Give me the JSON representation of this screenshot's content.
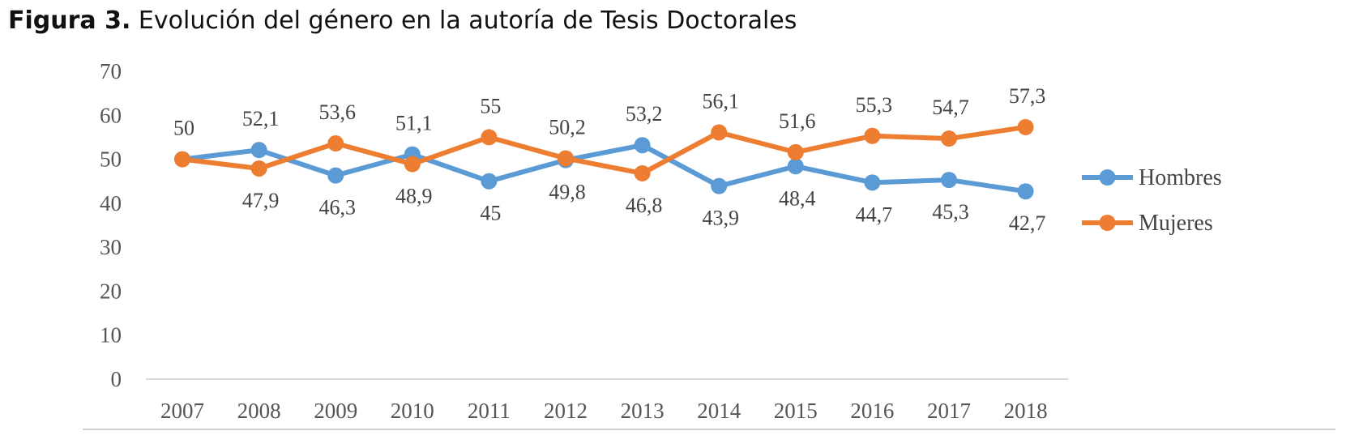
{
  "caption": {
    "label": "Figura 3.",
    "text": "Evolución del género en la autoría de Tesis Doctorales"
  },
  "chart_data": {
    "type": "line",
    "categories": [
      "2007",
      "2008",
      "2009",
      "2010",
      "2011",
      "2012",
      "2013",
      "2014",
      "2015",
      "2016",
      "2017",
      "2018"
    ],
    "ylim": [
      0,
      70
    ],
    "yticks": [
      0,
      10,
      20,
      30,
      40,
      50,
      60,
      70
    ],
    "grid": false,
    "legend": "right",
    "series": [
      {
        "name": "Hombres",
        "color": "#5B9BD5",
        "values": [
          50,
          52.1,
          46.3,
          51.1,
          45,
          49.8,
          53.2,
          43.9,
          48.4,
          44.7,
          45.3,
          42.7
        ],
        "labels": [
          "50",
          "52,1",
          "46,3",
          "51,1",
          "45",
          "49,8",
          "53,2",
          "43,9",
          "48,4",
          "44,7",
          "45,3",
          "42,7"
        ]
      },
      {
        "name": "Mujeres",
        "color": "#ED7D31",
        "values": [
          50,
          47.9,
          53.6,
          48.9,
          55,
          50.2,
          46.8,
          56.1,
          51.6,
          55.3,
          54.7,
          57.3
        ],
        "labels": [
          "",
          "47,9",
          "53,6",
          "48,9",
          "55",
          "50,2",
          "46,8",
          "56,1",
          "51,6",
          "55,3",
          "54,7",
          "57,3"
        ]
      }
    ]
  }
}
